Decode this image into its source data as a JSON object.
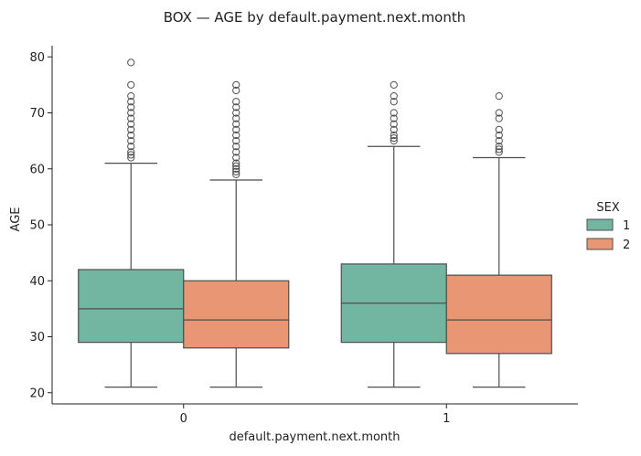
{
  "chart_data": {
    "type": "box",
    "title": "BOX — AGE by default.payment.next.month",
    "xlabel": "default.payment.next.month",
    "ylabel": "AGE",
    "categories": [
      "0",
      "1"
    ],
    "ylim": [
      18,
      82
    ],
    "yticks": [
      20,
      30,
      40,
      50,
      60,
      70,
      80
    ],
    "grid": false,
    "legend": {
      "title": "SEX",
      "placement": "right"
    },
    "series": [
      {
        "name": "1",
        "color": "#72b6a1",
        "boxes": [
          {
            "category": "0",
            "whisker_low": 21,
            "q1": 29,
            "median": 35,
            "q3": 42,
            "whisker_high": 61,
            "outliers": [
              62,
              62.5,
              63,
              64,
              65,
              66,
              67,
              68,
              69,
              70,
              71,
              72,
              73,
              75,
              79
            ]
          },
          {
            "category": "1",
            "whisker_low": 21,
            "q1": 29,
            "median": 36,
            "q3": 43,
            "whisker_high": 64,
            "outliers": [
              65,
              65.5,
              66,
              67,
              68,
              69,
              70,
              72,
              73,
              75
            ]
          }
        ]
      },
      {
        "name": "2",
        "color": "#e99675",
        "boxes": [
          {
            "category": "0",
            "whisker_low": 21,
            "q1": 28,
            "median": 33,
            "q3": 40,
            "whisker_high": 58,
            "outliers": [
              59,
              59.5,
              60,
              60.5,
              61,
              62,
              63,
              64,
              65,
              66,
              67,
              68,
              69,
              70,
              71,
              72,
              74,
              75
            ]
          },
          {
            "category": "1",
            "whisker_low": 21,
            "q1": 27,
            "median": 33,
            "q3": 41,
            "whisker_high": 62,
            "outliers": [
              63,
              63.5,
              64,
              65,
              66,
              67,
              69,
              70,
              73
            ]
          }
        ]
      }
    ]
  }
}
